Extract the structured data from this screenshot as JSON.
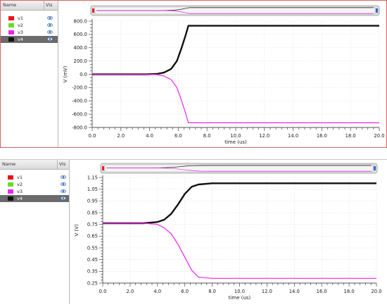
{
  "legend": {
    "header_name": "Name",
    "header_vis": "Vis",
    "items": [
      {
        "label": "v1",
        "color": "#ee1111",
        "selected": false
      },
      {
        "label": "v2",
        "color": "#66dd22",
        "selected": false
      },
      {
        "label": "v3",
        "color": "#ee22ee",
        "selected": false
      },
      {
        "label": "v4",
        "color": "#111111",
        "selected": true
      }
    ]
  },
  "chart_data": [
    {
      "type": "line",
      "xlabel": "time (us)",
      "ylabel": "V (mV)",
      "xlim": [
        0,
        20
      ],
      "ylim": [
        -800,
        800
      ],
      "xticks": [
        "0.0",
        "2.0",
        "4.0",
        "6.0",
        "8.0",
        "10.0",
        "12.0",
        "14.0",
        "16.0",
        "18.0",
        "20.0"
      ],
      "yticks": [
        "800.0",
        "600.0",
        "400.0",
        "200.0",
        "0.0",
        "-200.0",
        "-400.0",
        "-600.0",
        "-800.0"
      ],
      "grid": true,
      "series": [
        {
          "name": "v4",
          "color": "#111111",
          "x": [
            0,
            3.8,
            4.5,
            5.0,
            5.5,
            5.9,
            6.2,
            6.5,
            6.7,
            20
          ],
          "y": [
            0,
            0,
            5,
            25,
            80,
            200,
            380,
            580,
            730,
            730
          ]
        },
        {
          "name": "v3",
          "color": "#ee22ee",
          "x": [
            0,
            3.8,
            4.5,
            5.0,
            5.5,
            5.9,
            6.2,
            6.5,
            6.7,
            20
          ],
          "y": [
            0,
            0,
            -5,
            -25,
            -80,
            -200,
            -380,
            -580,
            -730,
            -730
          ]
        }
      ]
    },
    {
      "type": "line",
      "xlabel": "time (us)",
      "ylabel": "V (V)",
      "xlim": [
        0,
        20
      ],
      "ylim": [
        0.25,
        1.15
      ],
      "xticks": [
        "0.0",
        "2.0",
        "4.0",
        "6.0",
        "8.0",
        "10.0",
        "12.0",
        "14.0",
        "16.0",
        "18.0",
        "20.0"
      ],
      "yticks": [
        "1.15",
        "1.05",
        "0.95",
        "0.85",
        "0.75",
        "0.65",
        "0.55",
        "0.45",
        "0.35",
        "0.25"
      ],
      "grid": true,
      "series": [
        {
          "name": "v4",
          "color": "#111111",
          "x": [
            0,
            3.0,
            4.0,
            4.5,
            5.0,
            5.5,
            6.0,
            6.5,
            7.0,
            8.0,
            20
          ],
          "y": [
            0.76,
            0.76,
            0.77,
            0.79,
            0.84,
            0.92,
            1.01,
            1.07,
            1.09,
            1.1,
            1.1
          ]
        },
        {
          "name": "v3",
          "color": "#ee22ee",
          "x": [
            0,
            3.0,
            4.0,
            4.5,
            5.0,
            5.5,
            6.0,
            6.5,
            7.0,
            8.0,
            20
          ],
          "y": [
            0.76,
            0.76,
            0.75,
            0.72,
            0.67,
            0.58,
            0.47,
            0.36,
            0.3,
            0.29,
            0.29
          ]
        }
      ]
    }
  ]
}
